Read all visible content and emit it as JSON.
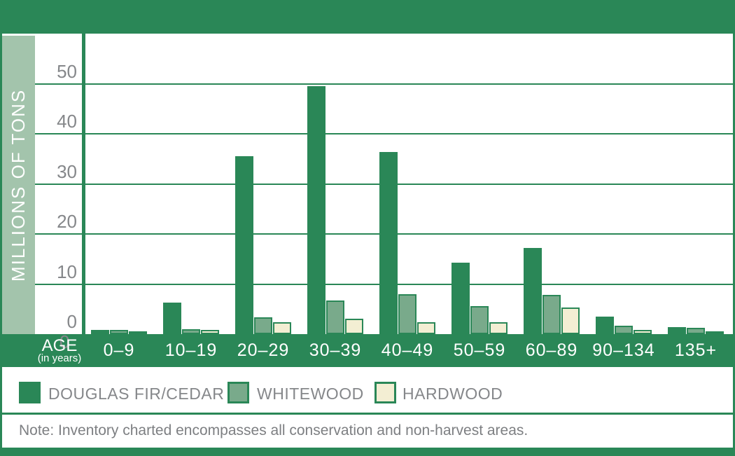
{
  "colors": {
    "dark_green": "#2a8757",
    "light_green_strip": "#a3c4ac",
    "whitewood_green": "#79aa8b",
    "hardwood_cream": "#f3eed3",
    "text_gray": "#85878a",
    "axis_text_white": "#ffffff"
  },
  "y_axis": {
    "title": "MILLIONS OF TONS",
    "ticks": [
      0,
      10,
      20,
      30,
      40,
      50
    ]
  },
  "x_axis": {
    "label": "AGE",
    "sublabel": "(in years)",
    "stray_tick": "0"
  },
  "legend": {
    "items": [
      {
        "label": "DOUGLAS FIR/CEDAR",
        "color": "#2a8757"
      },
      {
        "label": "WHITEWOOD",
        "color": "#79aa8b"
      },
      {
        "label": "HARDWOOD",
        "color": "#f3eed3"
      }
    ]
  },
  "note": "Note: Inventory charted encompasses all conservation and non-harvest areas.",
  "chart_data": {
    "type": "bar",
    "title": "",
    "categories": [
      "0–9",
      "10–19",
      "20–29",
      "30–39",
      "40–49",
      "50–59",
      "60–89",
      "90–134",
      "135+"
    ],
    "series": [
      {
        "name": "DOUGLAS FIR/CEDAR",
        "color": "#2a8757",
        "values": [
          0.8,
          6.3,
          35.5,
          49.5,
          36.3,
          14.3,
          17.2,
          3.5,
          1.4
        ]
      },
      {
        "name": "WHITEWOOD",
        "color": "#79aa8b",
        "values": [
          0.8,
          1.0,
          3.4,
          6.7,
          8.0,
          5.6,
          7.9,
          1.7,
          1.3
        ]
      },
      {
        "name": "HARDWOOD",
        "color": "#f3eed3",
        "values": [
          0.6,
          0.8,
          2.4,
          3.1,
          2.4,
          2.4,
          5.3,
          0.9,
          0.5
        ]
      }
    ],
    "xlabel": "AGE (in years)",
    "ylabel": "MILLIONS OF TONS",
    "ylim": [
      0,
      55
    ],
    "yticks": [
      0,
      10,
      20,
      30,
      40,
      50
    ],
    "grid": true,
    "legend_position": "bottom",
    "note": "Note: Inventory charted encompasses all conservation and non-harvest areas."
  }
}
